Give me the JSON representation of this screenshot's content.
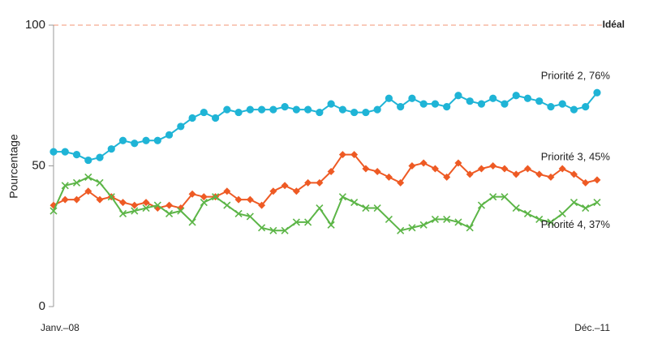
{
  "chart_data": {
    "type": "line",
    "y_label": "Pourcentage",
    "categories": [
      "Janv.–08",
      null,
      null,
      null,
      null,
      null,
      null,
      null,
      null,
      null,
      null,
      null,
      null,
      null,
      null,
      null,
      null,
      null,
      null,
      null,
      null,
      null,
      null,
      null,
      null,
      null,
      null,
      null,
      null,
      null,
      null,
      null,
      null,
      null,
      null,
      null,
      null,
      null,
      null,
      null,
      null,
      null,
      null,
      null,
      null,
      null,
      null,
      "Déc.–11"
    ],
    "ylim": [
      0,
      100
    ],
    "yticks": [
      0,
      50,
      100
    ],
    "reference": {
      "label": "Idéal",
      "value": 100,
      "color": "#ee6a3c"
    },
    "series": [
      {
        "name": "Priorité 2, 76%",
        "color": "#1fb4d6",
        "marker": "circle",
        "values": [
          55,
          55,
          54,
          52,
          53,
          56,
          59,
          58,
          59,
          59,
          61,
          64,
          67,
          69,
          67,
          70,
          69,
          70,
          70,
          70,
          71,
          70,
          70,
          69,
          72,
          70,
          69,
          69,
          70,
          74,
          71,
          74,
          72,
          72,
          71,
          75,
          73,
          72,
          74,
          72,
          75,
          74,
          73,
          71,
          72,
          70,
          71,
          76
        ]
      },
      {
        "name": "Priorité 3, 45%",
        "color": "#ee5a24",
        "marker": "diamond",
        "values": [
          36,
          38,
          38,
          41,
          38,
          39,
          37,
          36,
          37,
          35,
          36,
          35,
          40,
          39,
          39,
          41,
          38,
          38,
          36,
          41,
          43,
          41,
          44,
          44,
          48,
          54,
          54,
          49,
          48,
          46,
          44,
          50,
          51,
          49,
          46,
          51,
          47,
          49,
          50,
          49,
          47,
          49,
          47,
          46,
          49,
          47,
          44,
          45
        ]
      },
      {
        "name": "Priorité 4, 37%",
        "color": "#5cb547",
        "marker": "cross",
        "values": [
          34,
          43,
          44,
          46,
          44,
          39,
          33,
          34,
          35,
          36,
          33,
          34,
          30,
          37,
          39,
          36,
          33,
          32,
          28,
          27,
          27,
          30,
          30,
          35,
          29,
          39,
          37,
          35,
          35,
          31,
          27,
          28,
          29,
          31,
          31,
          30,
          28,
          36,
          39,
          39,
          35,
          33,
          31,
          30,
          33,
          37,
          35,
          37
        ]
      }
    ]
  }
}
